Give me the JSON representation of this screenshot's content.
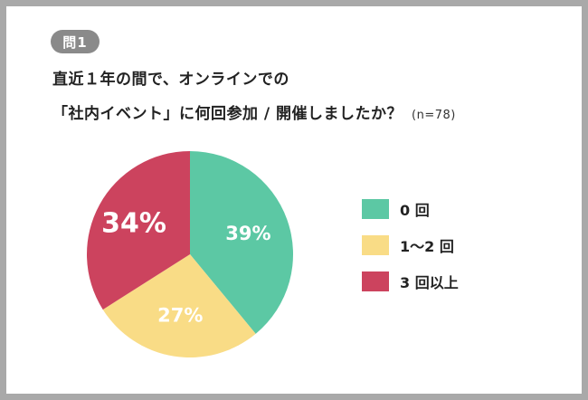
{
  "header": {
    "badge": "問1",
    "title_line1": "直近１年の間で、オンラインでの",
    "title_line2": "「社内イベント」に何回参加 / 開催しましたか？",
    "sample_size": "(n=78)"
  },
  "colors": {
    "zero": "#5cc8a4",
    "one_two": "#f9dc86",
    "three_plus": "#cc435e"
  },
  "chart_data": {
    "type": "pie",
    "slices": [
      {
        "name": "0 回",
        "value": 39,
        "label": "39%",
        "color": "#5cc8a4"
      },
      {
        "name": "1〜2 回",
        "value": 27,
        "label": "27%",
        "color": "#f9dc86"
      },
      {
        "name": "3 回以上",
        "value": 34,
        "label": "34%",
        "color": "#cc435e"
      }
    ],
    "start_angle_deg": 0,
    "direction": "clockwise",
    "legend_position": "right"
  }
}
